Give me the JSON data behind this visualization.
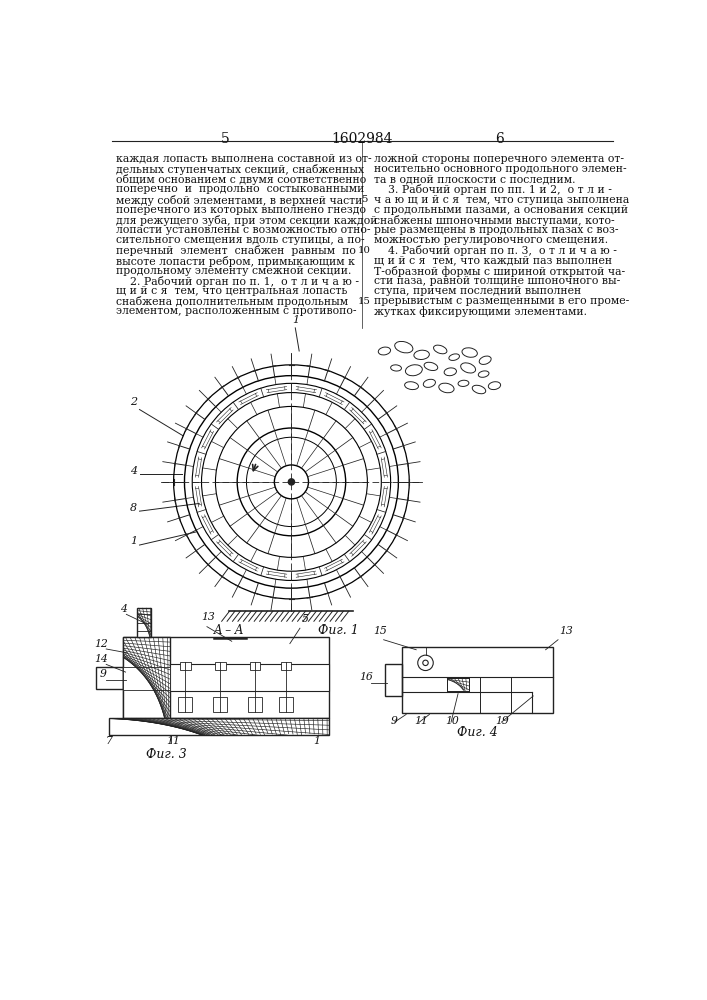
{
  "page_number_left": "5",
  "page_number_center": "1602984",
  "page_number_right": "6",
  "background_color": "#ffffff",
  "line_color": "#222222",
  "text_color": "#111111",
  "left_column_text": [
    "каждая лопасть выполнена составной из от-",
    "дельных ступенчатых секций, снабженных",
    "общим основанием с двумя соответственно",
    "поперечно  и  продольно  состыкованными",
    "между собой элементами, в верхней части",
    "поперечного из которых выполнено гнездо",
    "для режущего зуба, при этом секции каждой",
    "лопасти установлены с возможностью отно-",
    "сительного смещения вдоль ступицы, а по-",
    "перечный  элемент  снабжен  равным  по",
    "высоте лопасти ребром, примыкающим к",
    "продольному элементу смежной секции.",
    "    2. Рабочий орган по п. 1,  о т л и ч а ю -",
    "щ и й с я  тем, что центральная лопасть",
    "снабжена дополнительным продольным",
    "элементом, расположенным с противопо-"
  ],
  "right_column_text": [
    "ложной стороны поперечного элемента от-",
    "носительно основного продольного элемен-",
    "та в одной плоскости с последним.",
    "    3. Рабочий орган по пп. 1 и 2,  о т л и -",
    "ч а ю щ и й с я  тем, что ступица зыполнена",
    "с продольными пазами, а основания секций",
    "снабжены шпоночными выступами, кото-",
    "рые размещены в продольных пазах с воз-",
    "можностью регулировочного смещения.",
    "    4. Рабочий орган по п. 3,  о т л и ч а ю -",
    "щ и й с я  тем, что каждый паз выполнен",
    "Т-образной формы с шириной открытой ча-",
    "сти паза, равной толщине шпоночного вы-",
    "ступа, причем последний выполнен",
    "прерывистым с размещенными в его проме-",
    "жутках фиксирующими элементами."
  ],
  "font_size_body": 7.8,
  "font_size_label": 9.0,
  "font_size_number": 10
}
